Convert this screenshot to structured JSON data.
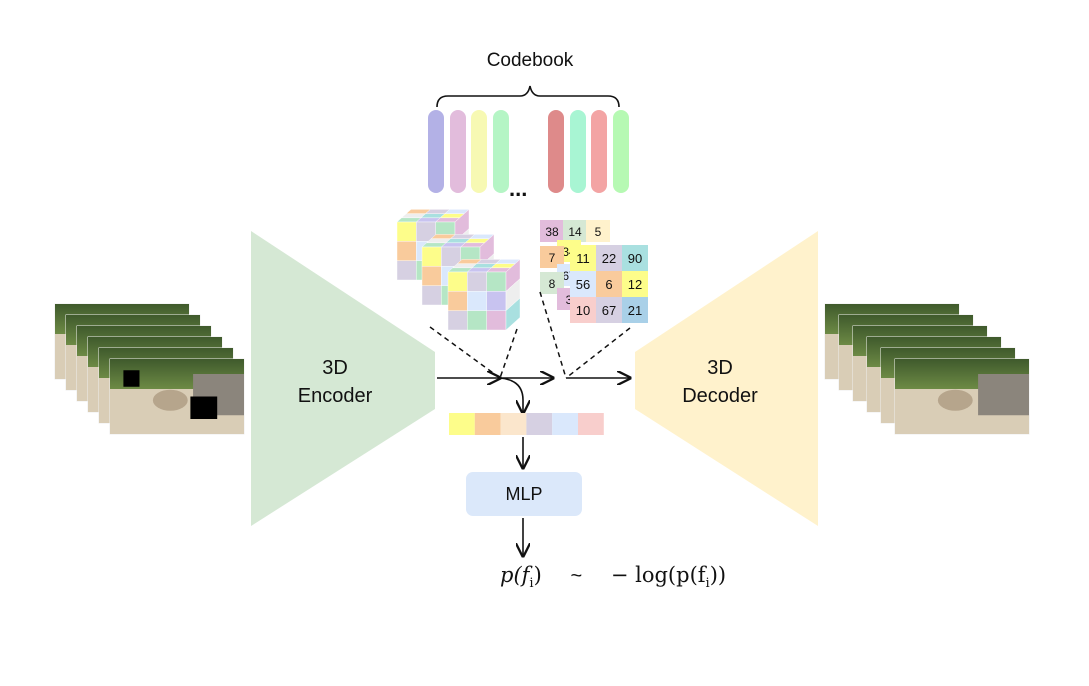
{
  "codebook": {
    "title": "Codebook",
    "ellipsis": "...",
    "vector_colors": [
      "#b3b1e6",
      "#e2bcdc",
      "#f7f9b3",
      "#b5f5c5",
      "#de8a8a",
      "#a8f5d3",
      "#f3a4a4",
      "#b6f9b3"
    ]
  },
  "encoder": {
    "line1": "3D",
    "line2": "Encoder",
    "color": "#d5e8d4"
  },
  "decoder": {
    "line1": "3D",
    "line2": "Decoder",
    "color": "#fff2cc"
  },
  "feature_strip": {
    "colors": [
      "#fdfd8a",
      "#f9cb9c",
      "#fbe6cc",
      "#d6d0e2",
      "#dae8fc",
      "#f8cecc"
    ]
  },
  "token_grid_back": [
    "38",
    "14",
    "5",
    "34",
    "7",
    "67",
    "8",
    "3"
  ],
  "token_grid_front": [
    [
      "11",
      "22",
      "90"
    ],
    [
      "56",
      "6",
      "12"
    ],
    [
      "10",
      "67",
      "21"
    ]
  ],
  "mlp": {
    "label": "MLP"
  },
  "formula": {
    "left": "p(f",
    "sub": "i",
    "close": ")",
    "tilde": "~",
    "right": "− log(p(f",
    "right_close": "))"
  },
  "input_frames": {
    "description_hidden": ""
  }
}
